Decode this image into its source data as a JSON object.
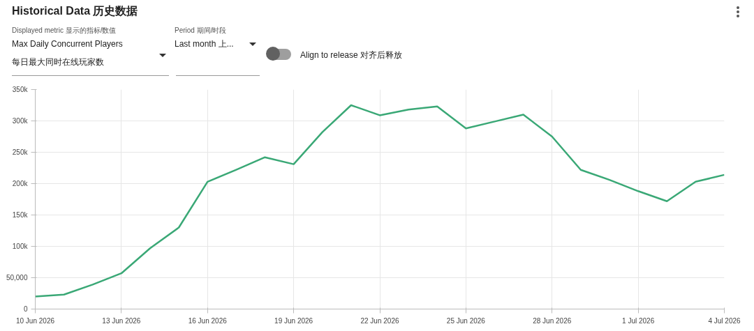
{
  "chart_data": {
    "type": "line",
    "title": "Historical Data  历史数据",
    "annotations": [
      "Displayed metric  显示的指标/数值",
      "Max Daily Concurrent Players",
      "每日最大同时在线玩家数",
      "Period  期间/时段",
      "Last month  上...",
      "Align to release   对齐后释放"
    ],
    "x": [
      "2026-06-10",
      "2026-06-11",
      "2026-06-12",
      "2026-06-13",
      "2026-06-14",
      "2026-06-15",
      "2026-06-16",
      "2026-06-17",
      "2026-06-18",
      "2026-06-19",
      "2026-06-20",
      "2026-06-21",
      "2026-06-22",
      "2026-06-23",
      "2026-06-24",
      "2026-06-25",
      "2026-06-26",
      "2026-06-27",
      "2026-06-28",
      "2026-06-29",
      "2026-06-30",
      "2026-07-01",
      "2026-07-02",
      "2026-07-03",
      "2026-07-04"
    ],
    "series": [
      {
        "color": "#3aa876",
        "values": [
          20000,
          23000,
          39000,
          57000,
          97000,
          130000,
          203000,
          222000,
          242000,
          231000,
          282000,
          325000,
          309000,
          318000,
          323000,
          288000,
          299000,
          310000,
          275000,
          222000,
          206000,
          188000,
          172000,
          203000,
          214000
        ]
      }
    ],
    "xlim": [
      "2026-06-10",
      "2026-07-04"
    ],
    "xticks": [
      {
        "value": "2026-06-10",
        "label": "10 Jun 2026"
      },
      {
        "value": "2026-06-13",
        "label": "13 Jun 2026"
      },
      {
        "value": "2026-06-16",
        "label": "16 Jun 2026"
      },
      {
        "value": "2026-06-19",
        "label": "19 Jun 2026"
      },
      {
        "value": "2026-06-22",
        "label": "22 Jun 2026"
      },
      {
        "value": "2026-06-25",
        "label": "25 Jun 2026"
      },
      {
        "value": "2026-06-28",
        "label": "28 Jun 2026"
      },
      {
        "value": "2026-07-01",
        "label": "1 Jul 2026"
      },
      {
        "value": "2026-07-04",
        "label": "4 Jul 2026"
      }
    ],
    "ylim": [
      0,
      350000
    ],
    "yticks": [
      0,
      {
        "value": 50000,
        "label": "50,000"
      },
      {
        "value": 100000,
        "label": "100k"
      },
      {
        "value": 150000,
        "label": "150k"
      },
      {
        "value": 200000,
        "label": "200k"
      },
      {
        "value": 250000,
        "label": "250k"
      },
      {
        "value": 300000,
        "label": "300k"
      },
      {
        "value": 350000,
        "label": "350k"
      }
    ],
    "grid": true,
    "marker": "none",
    "line_style": "solid"
  }
}
